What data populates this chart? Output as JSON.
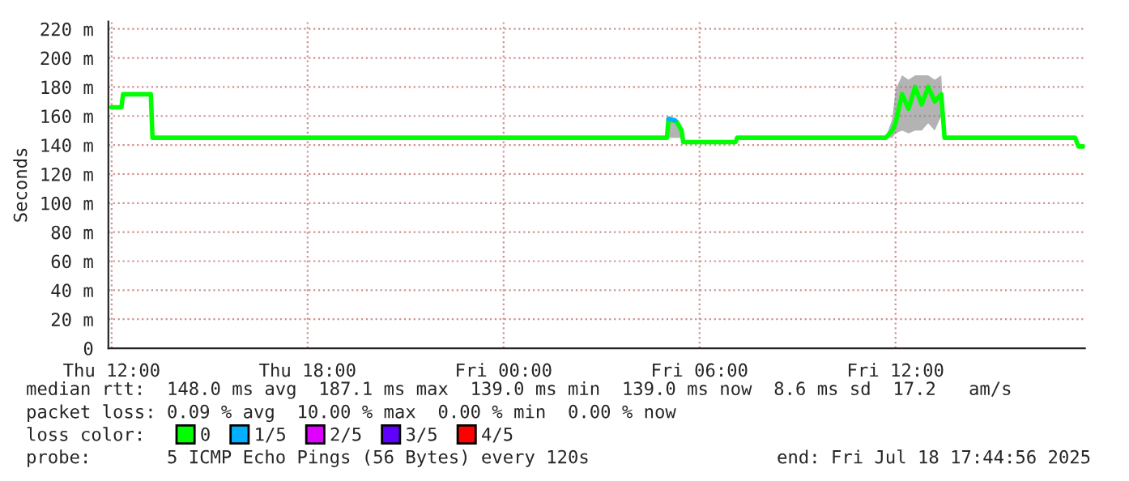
{
  "chart_data": {
    "type": "line",
    "ylabel": "Seconds",
    "xlim": [
      "2025-07-17T11:54",
      "2025-07-18T17:48"
    ],
    "xticks": [
      {
        "value": "2025-07-17T12:00",
        "label": "Thu 12:00"
      },
      {
        "value": "2025-07-17T18:00",
        "label": "Thu 18:00"
      },
      {
        "value": "2025-07-18T00:00",
        "label": "Fri 00:00"
      },
      {
        "value": "2025-07-18T06:00",
        "label": "Fri 06:00"
      },
      {
        "value": "2025-07-18T12:00",
        "label": "Fri 12:00"
      }
    ],
    "ylim": [
      0,
      225
    ],
    "yticks": [
      0,
      {
        "value": 20,
        "label": "20 m"
      },
      {
        "value": 40,
        "label": "40 m"
      },
      {
        "value": 60,
        "label": "60 m"
      },
      {
        "value": 80,
        "label": "80 m"
      },
      {
        "value": 100,
        "label": "100 m"
      },
      {
        "value": 120,
        "label": "120 m"
      },
      {
        "value": 140,
        "label": "140 m"
      },
      {
        "value": 160,
        "label": "160 m"
      },
      {
        "value": 180,
        "label": "180 m"
      },
      {
        "value": 200,
        "label": "200 m"
      },
      {
        "value": 220,
        "label": "220 m"
      }
    ],
    "grid": true,
    "legend": "bottom",
    "marker": "none",
    "line_style": "solid",
    "series": [
      {
        "name": "0",
        "color": "#00ff00",
        "x": [
          "2025-07-17T12:00",
          "2025-07-17T12:18",
          "2025-07-17T12:21",
          "2025-07-17T13:12",
          "2025-07-17T13:15",
          "2025-07-17T20:00",
          "2025-07-18T01:00",
          "2025-07-18T05:00",
          "2025-07-18T05:03",
          "2025-07-18T05:18",
          "2025-07-18T05:27",
          "2025-07-18T05:30",
          "2025-07-18T07:06",
          "2025-07-18T07:09",
          "2025-07-18T11:42",
          "2025-07-18T11:54",
          "2025-07-18T12:00",
          "2025-07-18T12:12",
          "2025-07-18T12:24",
          "2025-07-18T12:36",
          "2025-07-18T12:48",
          "2025-07-18T13:00",
          "2025-07-18T13:12",
          "2025-07-18T13:24",
          "2025-07-18T13:30",
          "2025-07-18T17:30",
          "2025-07-18T17:36",
          "2025-07-18T17:45"
        ],
        "values": [
          166,
          166,
          175,
          175,
          145,
          145,
          145,
          145,
          158,
          156,
          150,
          142,
          142,
          145,
          145,
          150,
          155,
          175,
          165,
          180,
          168,
          180,
          170,
          175,
          145,
          145,
          139,
          139
        ],
        "lower": [
          166,
          166,
          175,
          175,
          145,
          145,
          145,
          145,
          145,
          145,
          145,
          142,
          142,
          145,
          145,
          145,
          148,
          150,
          148,
          150,
          150,
          155,
          150,
          160,
          145,
          145,
          139,
          139
        ],
        "upper": [
          166,
          166,
          175,
          175,
          145,
          145,
          145,
          145,
          160,
          158,
          152,
          142,
          142,
          145,
          145,
          158,
          178,
          188,
          185,
          188,
          188,
          188,
          185,
          188,
          145,
          145,
          139,
          139
        ]
      },
      {
        "name": "1/5",
        "color": "#00b0ff",
        "x": [
          "2025-07-18T05:03",
          "2025-07-18T05:15"
        ],
        "values": [
          158,
          157
        ]
      },
      {
        "name": "2/5",
        "color": "#e000ff"
      },
      {
        "name": "3/5",
        "color": "#6000ff"
      },
      {
        "name": "4/5",
        "color": "#ff0000"
      }
    ],
    "annotations": [
      "median rtt:  148.0 ms avg  187.1 ms max  139.0 ms min  139.0 ms now  8.6 ms sd  17.2   am/s",
      "packet loss: 0.09 % avg  10.00 % max  0.00 % min  0.00 % now",
      "loss color:",
      "probe:       5 ICMP Echo Pings (56 Bytes) every 120s",
      "end: Fri Jul 18 17:44:56 2025"
    ]
  }
}
